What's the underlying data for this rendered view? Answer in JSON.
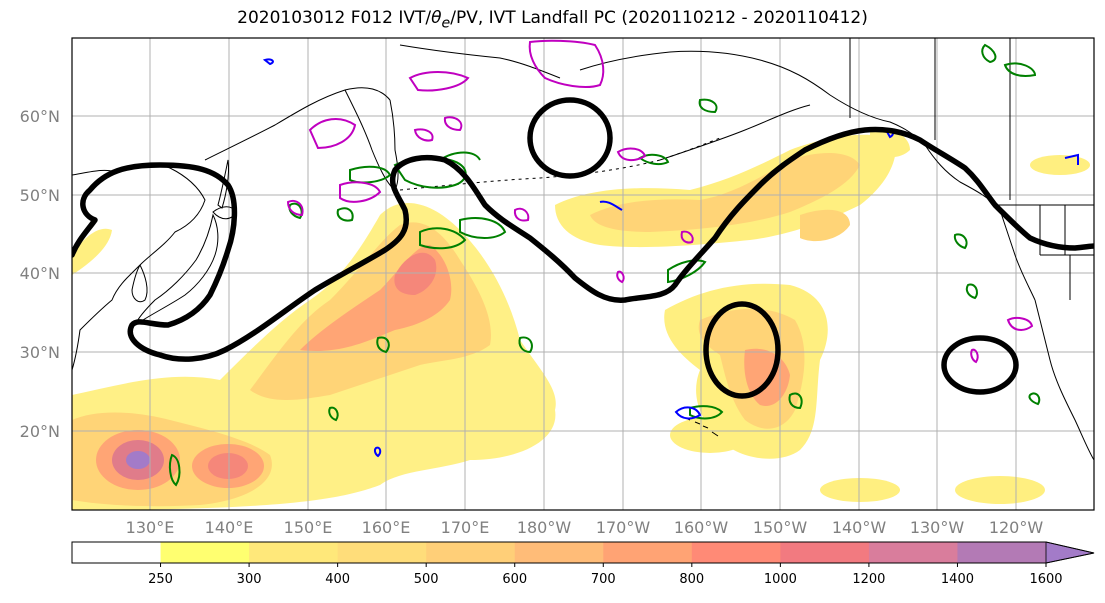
{
  "title": "2020103012 F012 IVT/θe/PV, IVT Landfall PC (2020110212 - 2020110412)",
  "title_parts": {
    "pre": "2020103012 F012 IVT/",
    "theta": "θ",
    "sub": "e",
    "post": "/PV, IVT Landfall PC (2020110212 - 2020110412)"
  },
  "map": {
    "projection": "PlateCarree",
    "lon_range": [
      "120°E",
      "120°W"
    ],
    "lat_range": [
      "10°N",
      "70°N"
    ],
    "gridlines": true,
    "lat_labels": [
      "60°N",
      "50°N",
      "40°N",
      "30°N",
      "20°N"
    ],
    "lon_labels": [
      "130°E",
      "140°E",
      "150°E",
      "160°E",
      "170°E",
      "180°W",
      "170°W",
      "160°W",
      "150°W",
      "140°W",
      "130°W",
      "120°W"
    ],
    "layers": {
      "ivt_fill": "IVT filled contours",
      "landfall_pc": "IVT Landfall PC (thick black contour)",
      "theta_e": "θe contours (green / blue)",
      "pv": "PV contours (magenta)"
    },
    "colors": {
      "pc_contour": "#000000",
      "theta_e_contour": "#008000",
      "theta_e_cold": "#0000ff",
      "pv_contour": "#c000c0",
      "coast": "#000000",
      "grid": "#b0b0b0"
    }
  },
  "colorbar": {
    "ticks": [
      "250",
      "300",
      "400",
      "500",
      "600",
      "700",
      "800",
      "1000",
      "1200",
      "1400",
      "1600"
    ],
    "bins": [
      {
        "lo": "0",
        "hi": "250",
        "color": "#ffffff"
      },
      {
        "lo": "250",
        "hi": "300",
        "color": "#ffff70"
      },
      {
        "lo": "300",
        "hi": "400",
        "color": "#ffe87a"
      },
      {
        "lo": "400",
        "hi": "500",
        "color": "#ffdd7a"
      },
      {
        "lo": "500",
        "hi": "600",
        "color": "#ffcf78"
      },
      {
        "lo": "600",
        "hi": "700",
        "color": "#ffbc78"
      },
      {
        "lo": "700",
        "hi": "800",
        "color": "#ffa374"
      },
      {
        "lo": "800",
        "hi": "1000",
        "color": "#ff8a76"
      },
      {
        "lo": "1000",
        "hi": "1200",
        "color": "#f27a80"
      },
      {
        "lo": "1200",
        "hi": "1400",
        "color": "#d97d9c"
      },
      {
        "lo": "1400",
        "hi": "1600",
        "color": "#b37ab5"
      },
      {
        "lo": "1600",
        "hi": "extend",
        "color": "#a37bc8"
      }
    ]
  }
}
